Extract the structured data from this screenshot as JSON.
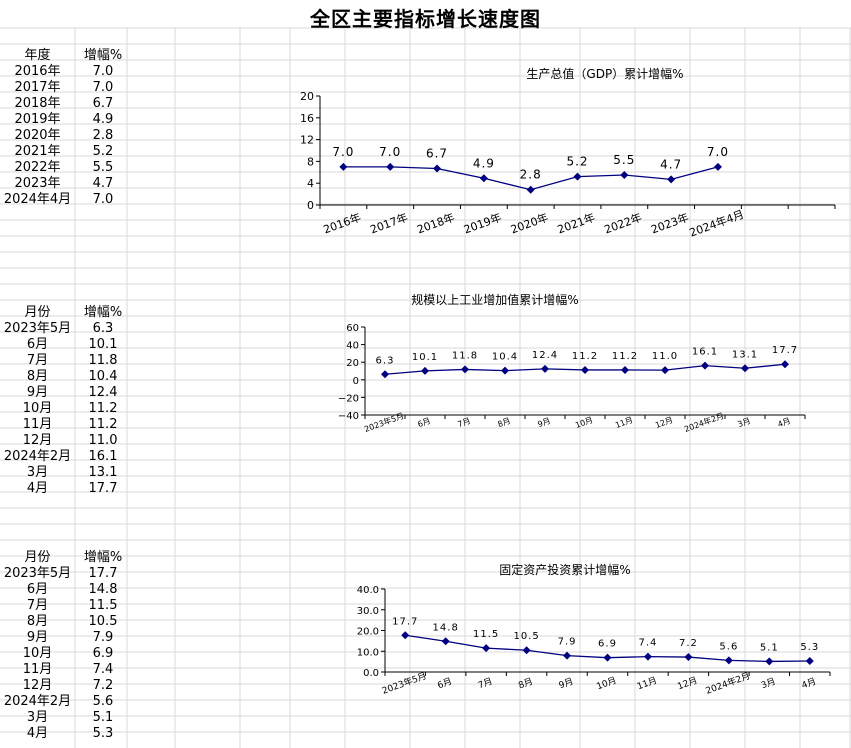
{
  "page_title": "全区主要指标增长速度图",
  "tables": [
    {
      "headers": [
        "年度",
        "增幅%"
      ],
      "rows": [
        [
          "2016年",
          "7.0"
        ],
        [
          "2017年",
          "7.0"
        ],
        [
          "2018年",
          "6.7"
        ],
        [
          "2019年",
          "4.9"
        ],
        [
          "2020年",
          "2.8"
        ],
        [
          "2021年",
          "5.2"
        ],
        [
          "2022年",
          "5.5"
        ],
        [
          "2023年",
          "4.7"
        ],
        [
          "2024年4月",
          "7.0"
        ]
      ]
    },
    {
      "headers": [
        "月份",
        "增幅%"
      ],
      "rows": [
        [
          "2023年5月",
          "6.3"
        ],
        [
          "6月",
          "10.1"
        ],
        [
          "7月",
          "11.8"
        ],
        [
          "8月",
          "10.4"
        ],
        [
          "9月",
          "12.4"
        ],
        [
          "10月",
          "11.2"
        ],
        [
          "11月",
          "11.2"
        ],
        [
          "12月",
          "11.0"
        ],
        [
          "2024年2月",
          "16.1"
        ],
        [
          "3月",
          "13.1"
        ],
        [
          "4月",
          "17.7"
        ]
      ]
    },
    {
      "headers": [
        "月份",
        "增幅%"
      ],
      "rows": [
        [
          "2023年5月",
          "17.7"
        ],
        [
          "6月",
          "14.8"
        ],
        [
          "7月",
          "11.5"
        ],
        [
          "8月",
          "10.5"
        ],
        [
          "9月",
          "7.9"
        ],
        [
          "10月",
          "6.9"
        ],
        [
          "11月",
          "7.4"
        ],
        [
          "12月",
          "7.2"
        ],
        [
          "2024年2月",
          "5.6"
        ],
        [
          "3月",
          "5.1"
        ],
        [
          "4月",
          "5.3"
        ]
      ]
    }
  ],
  "line_color": "#000080",
  "chart_data": [
    {
      "type": "line",
      "title": "生产总值（GDP）累计增幅%",
      "categories": [
        "2016年",
        "2017年",
        "2018年",
        "2019年",
        "2020年",
        "2021年",
        "2022年",
        "2023年",
        "2024年4月"
      ],
      "values": [
        7.0,
        7.0,
        6.7,
        4.9,
        2.8,
        5.2,
        5.5,
        4.7,
        7.0
      ],
      "ylim": [
        0,
        20
      ],
      "yticks": [
        "0",
        "4",
        "8",
        "12",
        "16",
        "20"
      ],
      "data_labels": [
        "7.0",
        "7.0",
        "6.7",
        "4.9",
        "2.8",
        "5.2",
        "5.5",
        "4.7",
        "7.0"
      ],
      "grid": false,
      "legend": "none"
    },
    {
      "type": "line",
      "title": "规模以上工业增加值累计增幅%",
      "categories": [
        "2023年5月",
        "6月",
        "7月",
        "8月",
        "9月",
        "10月",
        "11月",
        "12月",
        "2024年2月",
        "3月",
        "4月"
      ],
      "values": [
        6.3,
        10.1,
        11.8,
        10.4,
        12.4,
        11.2,
        11.2,
        11.0,
        16.1,
        13.1,
        17.7
      ],
      "ylim": [
        -40,
        60
      ],
      "yticks": [
        "−40",
        "−20",
        "0",
        "20",
        "40",
        "60"
      ],
      "data_labels": [
        "6.3",
        "10.1",
        "11.8",
        "10.4",
        "12.4",
        "11.2",
        "11.2",
        "11.0",
        "16.1",
        "13.1",
        "17.7"
      ],
      "grid": false,
      "legend": "none"
    },
    {
      "type": "line",
      "title": "固定资产投资累计增幅%",
      "categories": [
        "2023年5月",
        "6月",
        "7月",
        "8月",
        "9月",
        "10月",
        "11月",
        "12月",
        "2024年2月",
        "3月",
        "4月"
      ],
      "values": [
        17.7,
        14.8,
        11.5,
        10.5,
        7.9,
        6.9,
        7.4,
        7.2,
        5.6,
        5.1,
        5.3
      ],
      "ylim": [
        0,
        40
      ],
      "yticks": [
        "0.0",
        "10.0",
        "20.0",
        "30.0",
        "40.0"
      ],
      "data_labels": [
        "17.7",
        "14.8",
        "11.5",
        "10.5",
        "7.9",
        "6.9",
        "7.4",
        "7.2",
        "5.6",
        "5.1",
        "5.3"
      ],
      "grid": false,
      "legend": "none"
    }
  ]
}
